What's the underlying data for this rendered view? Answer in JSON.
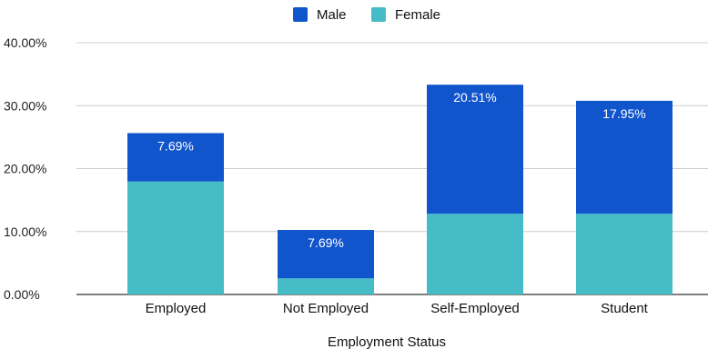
{
  "chart_data": {
    "type": "bar",
    "stacked": true,
    "title": "",
    "xlabel": "Employment Status",
    "ylabel": "",
    "ylim": [
      0,
      40
    ],
    "yticks": [
      0,
      10,
      20,
      30,
      40
    ],
    "ytick_labels": [
      "0.00%",
      "10.00%",
      "20.00%",
      "30.00%",
      "40.00%"
    ],
    "grid": true,
    "legend_position": "top-center",
    "categories": [
      "Employed",
      "Not Employed",
      "Self-Employed",
      "Student"
    ],
    "series": [
      {
        "name": "Female",
        "color": "#46BDC6",
        "values": [
          17.95,
          2.56,
          12.82,
          12.82
        ],
        "labels": [
          "",
          "",
          "",
          ""
        ]
      },
      {
        "name": "Male",
        "color": "#1155CC",
        "values": [
          7.69,
          7.69,
          20.51,
          17.95
        ],
        "labels": [
          "7.69%",
          "7.69%",
          "20.51%",
          "17.95%"
        ]
      }
    ],
    "legend_order": [
      "Male",
      "Female"
    ]
  }
}
